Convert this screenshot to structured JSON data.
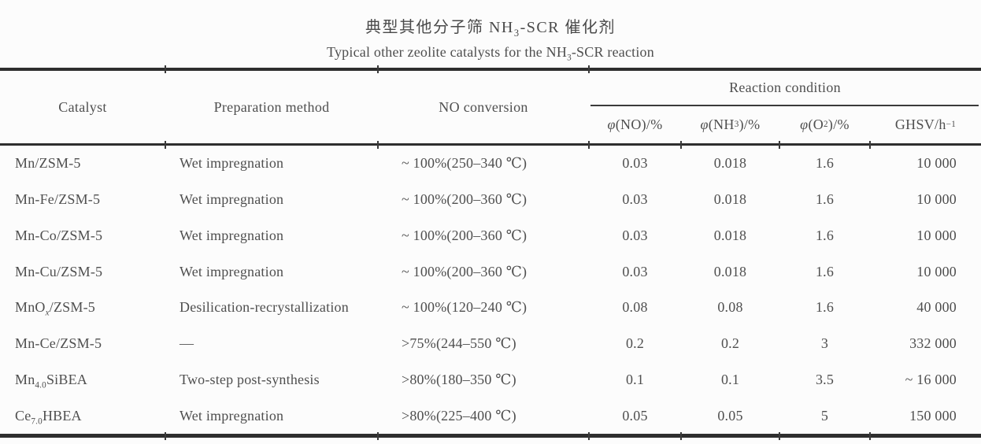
{
  "title": {
    "zh_html": "典型其他分子筛 NH<sub>3</sub>-SCR 催化剂",
    "en_html": "Typical other zeolite catalysts for the NH<sub>3</sub>-SCR reaction"
  },
  "header": {
    "catalyst": "Catalyst",
    "preparation": "Preparation method",
    "no_conversion": "NO conversion",
    "reaction_condition": "Reaction condition",
    "phi_no_html": "<i>φ</i>(NO)/%",
    "phi_nh3_html": "<i>φ</i>(NH<sub>3</sub>)/%",
    "phi_o2_html": "<i>φ</i>(O<sub>2</sub>)/%",
    "ghsv_html": "GHSV/h<sup>−1</sup>"
  },
  "rows": [
    {
      "catalyst_html": "Mn/ZSM-5",
      "preparation": "Wet impregnation",
      "no_conversion": "~ 100%(250–340 ℃)",
      "phi_no": "0.03",
      "phi_nh3": "0.018",
      "phi_o2": "1.6",
      "ghsv": "10 000"
    },
    {
      "catalyst_html": "Mn-Fe/ZSM-5",
      "preparation": "Wet impregnation",
      "no_conversion": "~ 100%(200–360 ℃)",
      "phi_no": "0.03",
      "phi_nh3": "0.018",
      "phi_o2": "1.6",
      "ghsv": "10 000"
    },
    {
      "catalyst_html": "Mn-Co/ZSM-5",
      "preparation": "Wet impregnation",
      "no_conversion": "~ 100%(200–360 ℃)",
      "phi_no": "0.03",
      "phi_nh3": "0.018",
      "phi_o2": "1.6",
      "ghsv": "10 000"
    },
    {
      "catalyst_html": "Mn-Cu/ZSM-5",
      "preparation": "Wet impregnation",
      "no_conversion": "~ 100%(200–360 ℃)",
      "phi_no": "0.03",
      "phi_nh3": "0.018",
      "phi_o2": "1.6",
      "ghsv": "10 000"
    },
    {
      "catalyst_html": "MnO<sub><i>x</i></sub>/ZSM-5",
      "preparation": "Desilication-recrystallization",
      "no_conversion": "~ 100%(120–240 ℃)",
      "phi_no": "0.08",
      "phi_nh3": "0.08",
      "phi_o2": "1.6",
      "ghsv": "40 000"
    },
    {
      "catalyst_html": "Mn-Ce/ZSM-5",
      "preparation": "—",
      "no_conversion": ">75%(244–550 ℃)",
      "phi_no": "0.2",
      "phi_nh3": "0.2",
      "phi_o2": "3",
      "ghsv": "332 000"
    },
    {
      "catalyst_html": "Mn<sub>4.0</sub>SiBEA",
      "preparation": "Two-step post-synthesis",
      "no_conversion": ">80%(180–350 ℃)",
      "phi_no": "0.1",
      "phi_nh3": "0.1",
      "phi_o2": "3.5",
      "ghsv": "~ 16 000"
    },
    {
      "catalyst_html": "Ce<sub>7.0</sub>HBEA",
      "preparation": "Wet impregnation",
      "no_conversion": ">80%(225–400 ℃)",
      "phi_no": "0.05",
      "phi_nh3": "0.05",
      "phi_o2": "5",
      "ghsv": "150 000"
    }
  ],
  "chart_data": {
    "type": "table",
    "title": "典型其他分子筛 NH3-SCR 催化剂 (Typical other zeolite catalysts for the NH3-SCR reaction)",
    "columns": [
      "Catalyst",
      "Preparation method",
      "NO conversion",
      "φ(NO)/%",
      "φ(NH3)/%",
      "φ(O2)/%",
      "GHSV/h-1"
    ],
    "column_group": {
      "label": "Reaction condition",
      "spans": [
        "φ(NO)/%",
        "φ(NH3)/%",
        "φ(O2)/%",
        "GHSV/h-1"
      ]
    },
    "rows": [
      [
        "Mn/ZSM-5",
        "Wet impregnation",
        "~100%(250-340 °C)",
        "0.03",
        "0.018",
        "1.6",
        "10 000"
      ],
      [
        "Mn-Fe/ZSM-5",
        "Wet impregnation",
        "~100%(200-360 °C)",
        "0.03",
        "0.018",
        "1.6",
        "10 000"
      ],
      [
        "Mn-Co/ZSM-5",
        "Wet impregnation",
        "~100%(200-360 °C)",
        "0.03",
        "0.018",
        "1.6",
        "10 000"
      ],
      [
        "Mn-Cu/ZSM-5",
        "Wet impregnation",
        "~100%(200-360 °C)",
        "0.03",
        "0.018",
        "1.6",
        "10 000"
      ],
      [
        "MnOx/ZSM-5",
        "Desilication-recrystallization",
        "~100%(120-240 °C)",
        "0.08",
        "0.08",
        "1.6",
        "40 000"
      ],
      [
        "Mn-Ce/ZSM-5",
        "—",
        ">75%(244-550 °C)",
        "0.2",
        "0.2",
        "3",
        "332 000"
      ],
      [
        "Mn4.0SiBEA",
        "Two-step post-synthesis",
        ">80%(180-350 °C)",
        "0.1",
        "0.1",
        "3.5",
        "~16 000"
      ],
      [
        "Ce7.0HBEA",
        "Wet impregnation",
        ">80%(225-400 °C)",
        "0.05",
        "0.05",
        "5",
        "150 000"
      ]
    ],
    "colors": {
      "text": "#4f4f4f",
      "rule": "#2e2e2e",
      "background": "#fcfcfc"
    }
  }
}
